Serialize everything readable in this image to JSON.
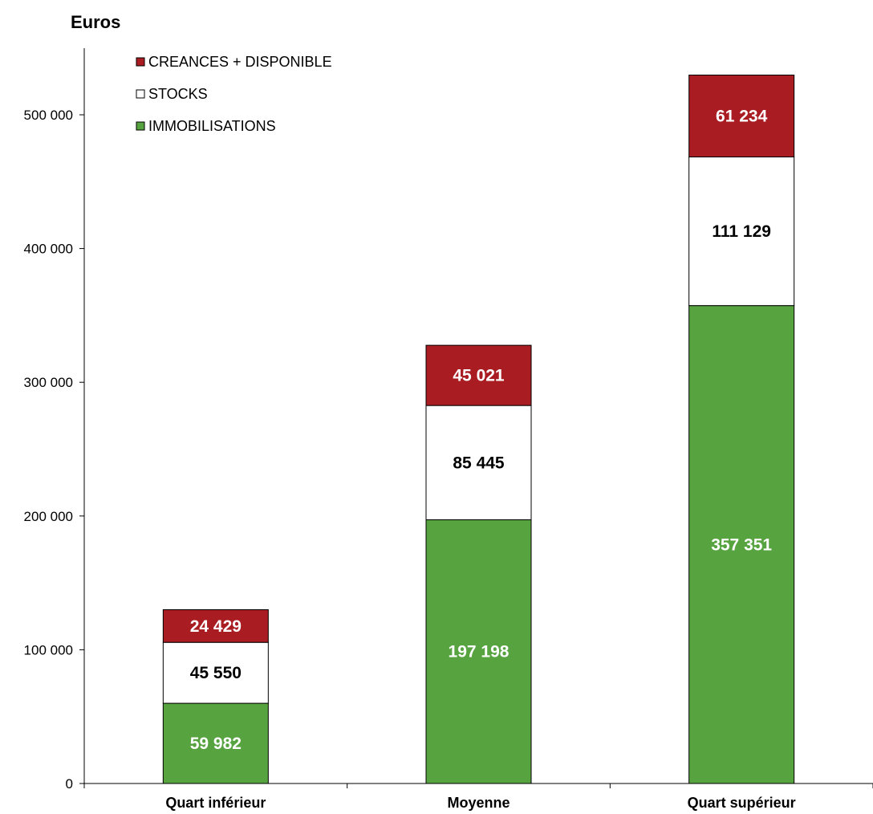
{
  "chart_data": {
    "type": "bar",
    "stacked": true,
    "unit_label": "Euros",
    "categories": [
      "Quart inférieur",
      "Moyenne",
      "Quart supérieur"
    ],
    "series": [
      {
        "name": "IMMOBILISATIONS",
        "color": "#56a33f",
        "label_color": "#ffffff",
        "values": [
          59982,
          197198,
          357351
        ],
        "labels": [
          "59 982",
          "197 198",
          "357 351"
        ]
      },
      {
        "name": "STOCKS",
        "color": "#ffffff",
        "label_color": "#000000",
        "values": [
          45550,
          85445,
          111129
        ],
        "labels": [
          "45 550",
          "85 445",
          "111 129"
        ]
      },
      {
        "name": "CREANCES + DISPONIBLE",
        "color": "#a81c22",
        "label_color": "#ffffff",
        "values": [
          24429,
          45021,
          61234
        ],
        "labels": [
          "24 429",
          "45 021",
          "61 234"
        ]
      }
    ],
    "ylim": [
      0,
      540000
    ],
    "yticks": [
      0,
      100000,
      200000,
      300000,
      400000,
      500000
    ],
    "ytick_labels": [
      "0",
      "100 000",
      "200 000",
      "300 000",
      "400 000",
      "500 000"
    ],
    "legend_order": [
      "CREANCES + DISPONIBLE",
      "STOCKS",
      "IMMOBILISATIONS"
    ],
    "legend_position": "top-left",
    "grid": false
  }
}
